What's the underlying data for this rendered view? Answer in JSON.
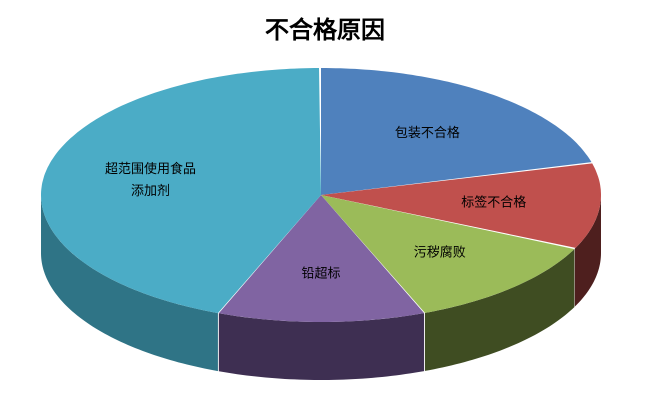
{
  "chart_data": {
    "type": "pie",
    "style": "3d",
    "title": "不合格原因",
    "start": "top",
    "direction": "clockwise",
    "unit": "percent (estimated)",
    "slices": [
      {
        "label": "包装不合格",
        "value": 21,
        "color": "#4F81BD",
        "side": "#2E4D72"
      },
      {
        "label": "标签不合格",
        "value": 11,
        "color": "#C0504D",
        "side": "#4E1F1E"
      },
      {
        "label": "污秽腐败",
        "value": 12,
        "color": "#9BBB59",
        "side": "#3F4D22"
      },
      {
        "label": "铅超标",
        "value": 12,
        "color": "#8064A2",
        "side": "#3E2F52"
      },
      {
        "label": "超范围使用食品\n添加剂",
        "value": 44,
        "color": "#4BACC6",
        "side": "#2F7486"
      }
    ]
  }
}
